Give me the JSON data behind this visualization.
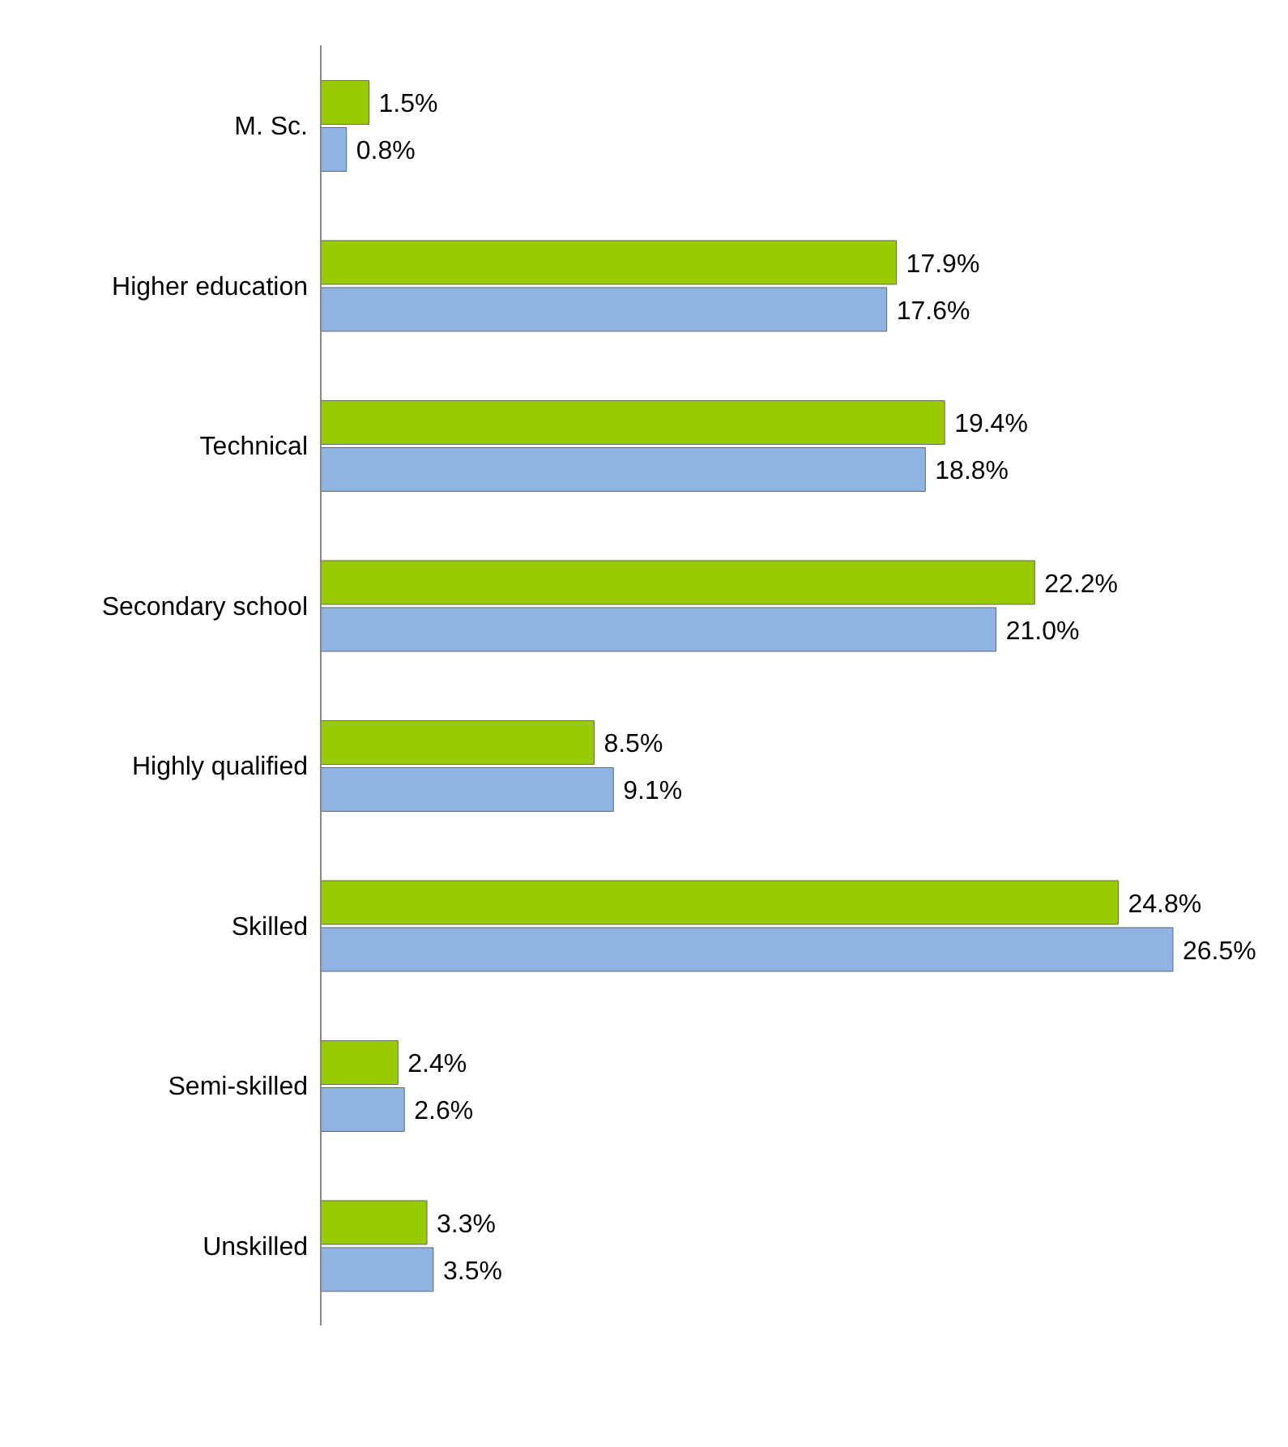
{
  "chart_data": {
    "type": "bar",
    "orientation": "horizontal",
    "categories": [
      "M. Sc.",
      "Higher education",
      "Technical",
      "Secondary school",
      "Highly qualified",
      "Skilled",
      "Semi-skilled",
      "Unskilled"
    ],
    "series": [
      {
        "color": "#99cc00",
        "values": [
          1.5,
          17.9,
          19.4,
          22.2,
          8.5,
          24.8,
          2.4,
          3.3
        ],
        "value_labels": [
          "1.5%",
          "17.9%",
          "19.4%",
          "22.2%",
          "8.5%",
          "24.8%",
          "2.4%",
          "3.3%"
        ]
      },
      {
        "color": "#8db4e2",
        "values": [
          0.8,
          17.6,
          18.8,
          21.0,
          9.1,
          26.5,
          2.6,
          3.5
        ],
        "value_labels": [
          "0.8%",
          "17.6%",
          "18.8%",
          "21.0%",
          "9.1%",
          "26.5%",
          "2.6%",
          "3.5%"
        ]
      }
    ]
  }
}
